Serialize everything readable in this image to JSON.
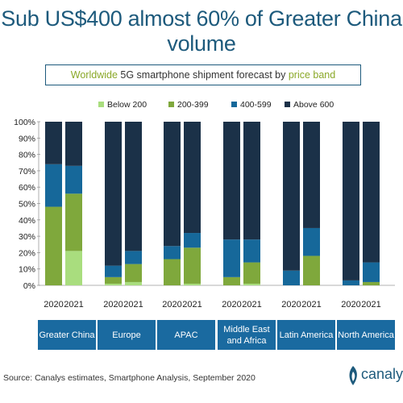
{
  "title": "Sub US$400 almost 60% of Greater China volume",
  "subtitle": {
    "part1": "Worldwide",
    "part2": " 5G smartphone shipment forecast by ",
    "part3": "price band"
  },
  "source": "Source: Canalys estimates, Smartphone Analysis, September 2020",
  "logo_text": "canalys",
  "colors": {
    "Below 200": "#a9dd7e",
    "200-399": "#7fa83c",
    "400-599": "#16689a",
    "Above 600": "#1b3148",
    "brand": "#1d5a7c",
    "region_box": "#1a6aa0"
  },
  "chart_data": {
    "type": "bar",
    "stacked": true,
    "ylim": [
      0,
      100
    ],
    "yticks": [
      "0%",
      "10%",
      "20%",
      "30%",
      "40%",
      "50%",
      "60%",
      "70%",
      "80%",
      "90%",
      "100%"
    ],
    "legend": [
      "Below 200",
      "200-399",
      "400-599",
      "Above 600"
    ],
    "groups": [
      {
        "region": "Greater China",
        "bars": [
          {
            "year": "2020",
            "values": [
              0,
              48,
              26,
              26
            ]
          },
          {
            "year": "2021",
            "values": [
              21,
              35,
              17,
              27
            ]
          }
        ]
      },
      {
        "region": "Europe",
        "bars": [
          {
            "year": "2020",
            "values": [
              1,
              4,
              7,
              88
            ]
          },
          {
            "year": "2021",
            "values": [
              2,
              11,
              8,
              79
            ]
          }
        ]
      },
      {
        "region": "APAC",
        "bars": [
          {
            "year": "2020",
            "values": [
              0,
              16,
              8,
              76
            ]
          },
          {
            "year": "2021",
            "values": [
              1,
              22,
              9,
              68
            ]
          }
        ]
      },
      {
        "region": "Middle East and Africa",
        "bars": [
          {
            "year": "2020",
            "values": [
              0,
              5,
              23,
              72
            ]
          },
          {
            "year": "2021",
            "values": [
              1,
              13,
              14,
              72
            ]
          }
        ]
      },
      {
        "region": "Latin America",
        "bars": [
          {
            "year": "2020",
            "values": [
              0,
              0,
              9,
              91
            ]
          },
          {
            "year": "2021",
            "values": [
              0,
              18,
              17,
              65
            ]
          }
        ]
      },
      {
        "region": "North America",
        "bars": [
          {
            "year": "2020",
            "values": [
              0,
              0,
              3,
              97
            ]
          },
          {
            "year": "2021",
            "values": [
              0,
              2,
              12,
              86
            ]
          }
        ]
      }
    ]
  }
}
